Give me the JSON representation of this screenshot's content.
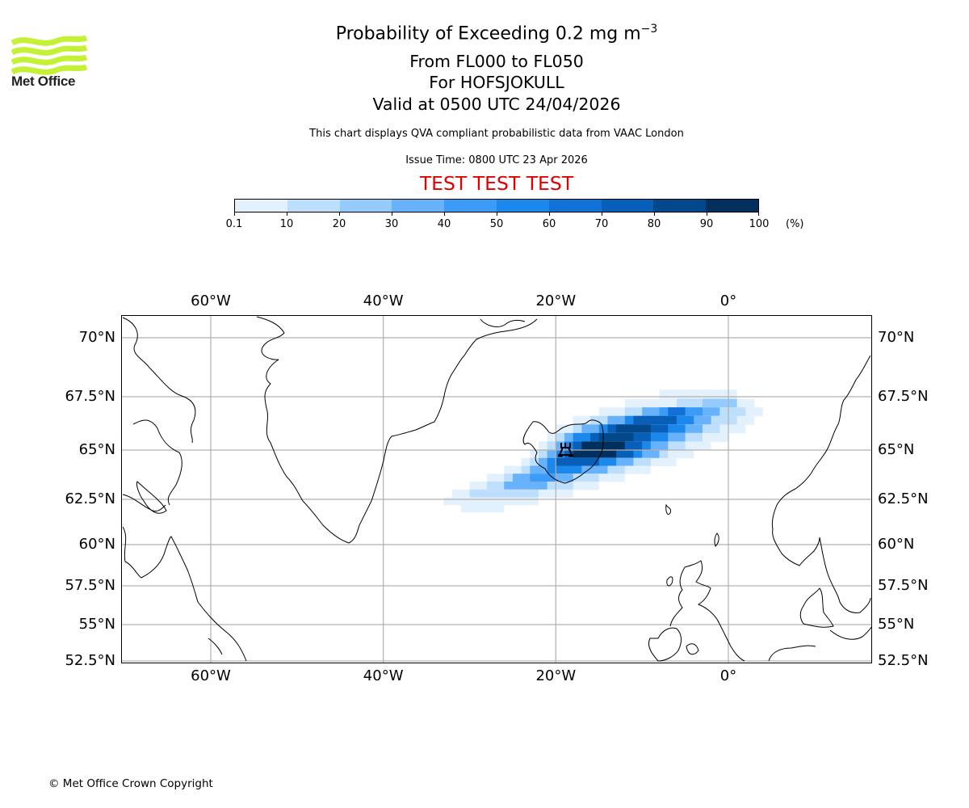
{
  "branding": {
    "logo_text": "Met Office",
    "logo_color": "#c4f135"
  },
  "header": {
    "title_prefix": "Probability of Exceeding 0.2 mg m",
    "title_exponent": "−3",
    "levels": "From FL000 to FL050",
    "volcano": "For HOFSJOKULL",
    "valid": "Valid at 0500 UTC 24/04/2026",
    "subtitle": "This chart displays QVA compliant probabilistic data from VAAC London",
    "issue_time": "Issue Time: 0800 UTC 23 Apr 2026",
    "test_banner": "TEST TEST TEST",
    "test_color": "#e00000"
  },
  "colorbar": {
    "unit": "(%)",
    "ticks": [
      "0.1",
      "10",
      "20",
      "30",
      "40",
      "50",
      "60",
      "70",
      "80",
      "90",
      "100"
    ],
    "colors": [
      "#e3f1fd",
      "#bddffc",
      "#94cafc",
      "#67b2fa",
      "#3c9bf7",
      "#1d88ec",
      "#1271d6",
      "#075fb8",
      "#02488a",
      "#02305e"
    ]
  },
  "chart_data": {
    "type": "heatmap",
    "title": "Probability of Exceeding 0.2 mg m−3",
    "variable": "Probability (%)",
    "levels": [
      0.1,
      10,
      20,
      30,
      40,
      50,
      60,
      70,
      80,
      90,
      100
    ],
    "lon_range": [
      -70,
      16
    ],
    "lat_range": [
      52.3,
      71
    ],
    "x_ticks": [
      "60°W",
      "40°W",
      "20°W",
      "0°"
    ],
    "x_tick_values": [
      -60,
      -40,
      -20,
      0
    ],
    "y_ticks": [
      "70°N",
      "67.5°N",
      "65°N",
      "62.5°N",
      "60°N",
      "57.5°N",
      "55°N",
      "52.5°N"
    ],
    "y_tick_values": [
      70,
      67.5,
      65,
      62.5,
      60,
      57.5,
      55,
      52.5
    ],
    "grid": true,
    "volcano_marker": {
      "name": "HOFSJOKULL",
      "lon": -18.9,
      "lat": 64.8
    },
    "plume": {
      "description_axis": "along-track bands of probability, lon ranges per latitude row",
      "rows": [
        {
          "lat": 67.6,
          "bands": [
            [
              -8,
              1,
              0.1
            ]
          ]
        },
        {
          "lat": 67.2,
          "bands": [
            [
              -12,
              3,
              0.1
            ],
            [
              -6,
              0,
              10
            ],
            [
              -3,
              1,
              20
            ]
          ]
        },
        {
          "lat": 66.8,
          "bands": [
            [
              -15,
              4,
              0.1
            ],
            [
              -12,
              2,
              10
            ],
            [
              -10,
              -1,
              30
            ],
            [
              -8,
              -3,
              40
            ],
            [
              -7,
              -5,
              60
            ]
          ]
        },
        {
          "lat": 66.4,
          "bands": [
            [
              -18,
              3,
              0.1
            ],
            [
              -16,
              1,
              10
            ],
            [
              -14,
              -2,
              30
            ],
            [
              -12,
              -4,
              50
            ],
            [
              -11,
              -6,
              70
            ]
          ]
        },
        {
          "lat": 66.0,
          "bands": [
            [
              -20,
              2,
              0.1
            ],
            [
              -18,
              -1,
              10
            ],
            [
              -17,
              -3,
              30
            ],
            [
              -15,
              -5,
              50
            ],
            [
              -14,
              -7,
              70
            ],
            [
              -13,
              -9,
              80
            ]
          ]
        },
        {
          "lat": 65.6,
          "bands": [
            [
              -21,
              0,
              0.1
            ],
            [
              -20,
              -3,
              10
            ],
            [
              -19,
              -5,
              30
            ],
            [
              -18,
              -7,
              50
            ],
            [
              -16,
              -9,
              70
            ],
            [
              -15,
              -11,
              80
            ]
          ]
        },
        {
          "lat": 65.2,
          "bands": [
            [
              -22,
              -2,
              0.1
            ],
            [
              -21,
              -5,
              10
            ],
            [
              -20,
              -7,
              30
            ],
            [
              -19,
              -9,
              50
            ],
            [
              -18,
              -10,
              70
            ],
            [
              -17,
              -12,
              90
            ]
          ]
        },
        {
          "lat": 64.8,
          "bands": [
            [
              -23,
              -4,
              0.1
            ],
            [
              -22,
              -7,
              10
            ],
            [
              -21,
              -8,
              30
            ],
            [
              -20,
              -10,
              50
            ],
            [
              -19,
              -11,
              70
            ],
            [
              -18,
              -13,
              90
            ]
          ]
        },
        {
          "lat": 64.4,
          "bands": [
            [
              -24,
              -6,
              0.1
            ],
            [
              -23,
              -9,
              10
            ],
            [
              -22,
              -11,
              30
            ],
            [
              -21,
              -13,
              50
            ],
            [
              -20,
              -15,
              70
            ]
          ]
        },
        {
          "lat": 64.0,
          "bands": [
            [
              -26,
              -9,
              0.1
            ],
            [
              -24,
              -12,
              10
            ],
            [
              -23,
              -14,
              30
            ],
            [
              -21,
              -17,
              50
            ]
          ]
        },
        {
          "lat": 63.6,
          "bands": [
            [
              -28,
              -12,
              0.1
            ],
            [
              -26,
              -15,
              10
            ],
            [
              -25,
              -18,
              30
            ],
            [
              -23,
              -20,
              40
            ]
          ]
        },
        {
          "lat": 63.2,
          "bands": [
            [
              -30,
              -15,
              0.1
            ],
            [
              -28,
              -18,
              10
            ],
            [
              -26,
              -21,
              30
            ]
          ]
        },
        {
          "lat": 62.8,
          "bands": [
            [
              -32,
              -18,
              0.1
            ],
            [
              -30,
              -22,
              10
            ]
          ]
        },
        {
          "lat": 62.4,
          "bands": [
            [
              -33,
              -22,
              0.1
            ]
          ]
        },
        {
          "lat": 62.0,
          "bands": [
            [
              -31,
              -26,
              0.1
            ]
          ]
        }
      ]
    }
  },
  "footer": {
    "copyright": "© Met Office Crown Copyright"
  }
}
